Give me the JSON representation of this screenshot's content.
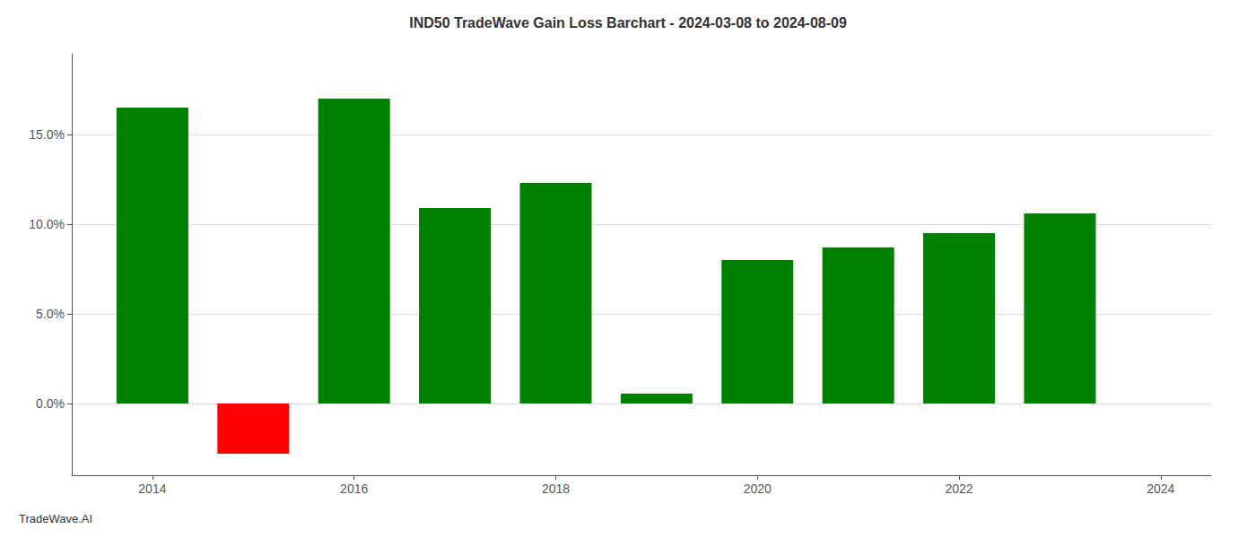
{
  "chart_data": {
    "type": "bar",
    "title": "IND50 TradeWave Gain Loss Barchart - 2024-03-08 to 2024-08-09",
    "annotations": [
      "TradeWave.AI"
    ],
    "x": [
      2014,
      2015,
      2016,
      2017,
      2018,
      2019,
      2020,
      2021,
      2022,
      2023
    ],
    "values": [
      16.5,
      -2.8,
      17.0,
      10.9,
      12.3,
      0.55,
      8.0,
      8.7,
      9.5,
      10.6
    ],
    "colors": [
      "#008000",
      "#ff0000",
      "#008000",
      "#008000",
      "#008000",
      "#008000",
      "#008000",
      "#008000",
      "#008000",
      "#008000"
    ],
    "xlim": [
      2013.2,
      2024.5
    ],
    "xticks": [
      2014,
      2016,
      2018,
      2020,
      2022,
      2024
    ],
    "ylim": [
      -4.0,
      19.5
    ],
    "yticks": [
      {
        "value": 0.0,
        "label": "0.0%"
      },
      {
        "value": 5.0,
        "label": "5.0%"
      },
      {
        "value": 10.0,
        "label": "10.0%"
      },
      {
        "value": 15.0,
        "label": "15.0%"
      }
    ],
    "grid": true
  }
}
